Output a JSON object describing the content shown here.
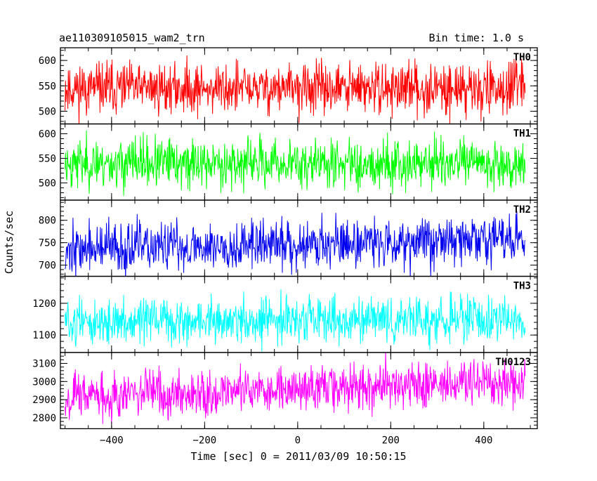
{
  "header": {
    "title": "ae110309105015_wam2_trn",
    "bin_time": "Bin time: 1.0 s"
  },
  "chart_data": {
    "type": "line",
    "title": "ae110309105015_wam2_trn",
    "subtitle": "Bin time: 1.0 s",
    "xlabel": "Time [sec] 0 = 2011/03/09 10:50:15",
    "ylabel": "Counts/sec",
    "xlim": [
      -510,
      515
    ],
    "x_ticks": [
      -400,
      -200,
      0,
      200,
      400
    ],
    "x_tick_labels": [
      "−400",
      "−200",
      "0",
      "200",
      "400"
    ],
    "x_data_range": [
      -500,
      489
    ],
    "bin_time_s": 1.0,
    "grid": false,
    "panels": [
      {
        "name": "TH0",
        "color": "#ff0000",
        "ylim": [
          475,
          625
        ],
        "y_ticks": [
          500,
          550,
          600
        ],
        "y_tick_labels": [
          "500",
          "550",
          "600"
        ],
        "mean_start": 545,
        "mean_end": 545,
        "noise": 25,
        "seed": 11
      },
      {
        "name": "TH1",
        "color": "#00ff00",
        "ylim": [
          465,
          620
        ],
        "y_ticks": [
          500,
          550,
          600
        ],
        "y_tick_labels": [
          "500",
          "550",
          "600"
        ],
        "mean_start": 540,
        "mean_end": 540,
        "noise": 25,
        "seed": 23
      },
      {
        "name": "TH2",
        "color": "#0000ee",
        "ylim": [
          675,
          845
        ],
        "y_ticks": [
          700,
          750,
          800
        ],
        "y_tick_labels": [
          "700",
          "750",
          "800"
        ],
        "mean_start": 735,
        "mean_end": 760,
        "noise": 28,
        "seed": 37
      },
      {
        "name": "TH3",
        "color": "#00ffff",
        "ylim": [
          1045,
          1285
        ],
        "y_ticks": [
          1100,
          1200
        ],
        "y_tick_labels": [
          "1100",
          "1200"
        ],
        "mean_start": 1140,
        "mean_end": 1150,
        "noise": 35,
        "seed": 51
      },
      {
        "name": "TH0123",
        "color": "#ff00ff",
        "ylim": [
          2740,
          3160
        ],
        "y_ticks": [
          2800,
          2900,
          3000,
          3100
        ],
        "y_tick_labels": [
          "2800",
          "2900",
          "3000",
          "3100"
        ],
        "mean_start": 2920,
        "mean_end": 3000,
        "noise": 65,
        "seed": 67
      }
    ]
  }
}
